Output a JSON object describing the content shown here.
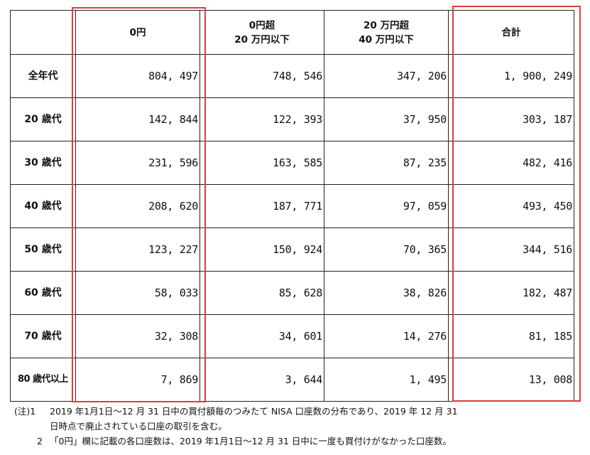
{
  "table": {
    "headers": {
      "col1": "0円",
      "col2_line1": "0円超",
      "col2_line2": "20 万円以下",
      "col3_line1": "20 万円超",
      "col3_line2": "40 万円以下",
      "col4": "合計"
    },
    "rows": [
      {
        "label": "全年代",
        "values": [
          "804, 497",
          "748, 546",
          "347, 206",
          "1, 900, 249"
        ]
      },
      {
        "label": "20 歳代",
        "values": [
          "142, 844",
          "122, 393",
          "37, 950",
          "303, 187"
        ]
      },
      {
        "label": "30 歳代",
        "values": [
          "231, 596",
          "163, 585",
          "87, 235",
          "482, 416"
        ]
      },
      {
        "label": "40 歳代",
        "values": [
          "208, 620",
          "187, 771",
          "97, 059",
          "493, 450"
        ]
      },
      {
        "label": "50 歳代",
        "values": [
          "123, 227",
          "150, 924",
          "70, 365",
          "344, 516"
        ]
      },
      {
        "label": "60 歳代",
        "values": [
          "58, 033",
          "85, 628",
          "38, 826",
          "182, 487"
        ]
      },
      {
        "label": "70 歳代",
        "values": [
          "32, 308",
          "34, 601",
          "14, 276",
          "81, 185"
        ]
      },
      {
        "label": "80 歳代以上",
        "values": [
          "7, 869",
          "3, 644",
          "1, 495",
          "13, 008"
        ]
      }
    ]
  },
  "notes": {
    "note1_mark": "(注)1",
    "note1_line1": "2019 年1月1日～12 月 31 日中の買付額毎のつみたて NISA 口座数の分布であり、2019 年 12 月 31",
    "note1_line2": "日時点で廃止されている口座の取引を含む。",
    "note2_mark": "2",
    "note2_text": "「0円」欄に記載の各口座数は、2019 年1月1日～12 月 31 日中に一度も買付けがなかった口座数。"
  },
  "colors": {
    "highlight": "#e23b3b",
    "border": "#222222"
  }
}
